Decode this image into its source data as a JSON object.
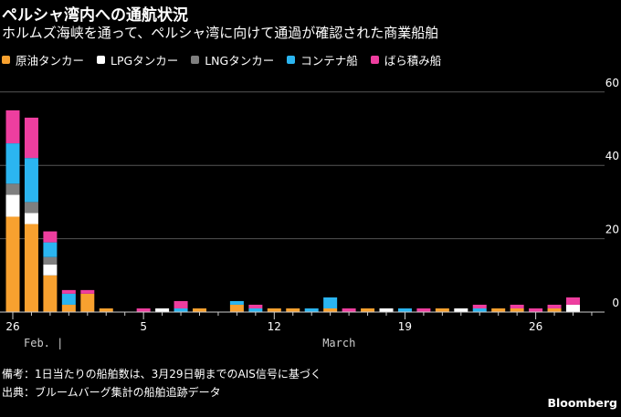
{
  "title": "ペルシャ湾内への通航状況",
  "subtitle": "ホルムズ海峡を通って、ペルシャ湾に向けて通過が確認された商業船舶",
  "notes": [
    "備考：1日当たりの船舶数は、3月29日朝までのAIS信号に基づく",
    "出典：ブルームバーグ集計の船舶追跡データ"
  ],
  "brand": "Bloomberg",
  "chart_data": {
    "type": "bar",
    "stacked": true,
    "ylim": [
      0,
      60
    ],
    "yticks": [
      0,
      20,
      40,
      60
    ],
    "grid": true,
    "y_axis_side": "right",
    "x": [
      "Feb 26",
      "Feb 27",
      "Feb 28",
      "Mar 1",
      "Mar 2",
      "Mar 3",
      "Mar 4",
      "Mar 5",
      "Mar 6",
      "Mar 7",
      "Mar 8",
      "Mar 9",
      "Mar 10",
      "Mar 11",
      "Mar 12",
      "Mar 13",
      "Mar 14",
      "Mar 15",
      "Mar 16",
      "Mar 17",
      "Mar 18",
      "Mar 19",
      "Mar 20",
      "Mar 21",
      "Mar 22",
      "Mar 23",
      "Mar 24",
      "Mar 25",
      "Mar 26",
      "Mar 27",
      "Mar 28",
      "Mar 29"
    ],
    "xtick_labels": [
      {
        "index": 0,
        "label": "26"
      },
      {
        "index": 7,
        "label": "5"
      },
      {
        "index": 14,
        "label": "12"
      },
      {
        "index": 21,
        "label": "19"
      },
      {
        "index": 28,
        "label": "26"
      }
    ],
    "month_labels": [
      {
        "index": 0,
        "label": "Feb.  |"
      },
      {
        "index": 16,
        "label": "March"
      }
    ],
    "series": [
      {
        "name": "原油タンカー",
        "color": "#f8a12f",
        "values": [
          26,
          24,
          10,
          2,
          5,
          1,
          0,
          0,
          0,
          0,
          1,
          0,
          2,
          0,
          1,
          1,
          0,
          1,
          0,
          1,
          0,
          0,
          0,
          1,
          0,
          0,
          1,
          1,
          0,
          1,
          0,
          0
        ]
      },
      {
        "name": "LPGタンカー",
        "color": "#ffffff",
        "values": [
          6,
          3,
          3,
          0,
          0,
          0,
          0,
          0,
          1,
          0,
          0,
          0,
          0,
          0,
          0,
          0,
          0,
          0,
          0,
          0,
          1,
          0,
          0,
          0,
          1,
          0,
          0,
          0,
          0,
          0,
          2,
          0
        ]
      },
      {
        "name": "LNGタンカー",
        "color": "#7f7f7f",
        "values": [
          3,
          3,
          2,
          0,
          0,
          0,
          0,
          0,
          0,
          0,
          0,
          0,
          0,
          0,
          0,
          0,
          0,
          0,
          0,
          0,
          0,
          0,
          0,
          0,
          0,
          0,
          0,
          0,
          0,
          0,
          0,
          0
        ]
      },
      {
        "name": "コンテナ船",
        "color": "#2bb5f0",
        "values": [
          11,
          12,
          4,
          3,
          0,
          0,
          0,
          0,
          0,
          1,
          0,
          0,
          1,
          1,
          0,
          0,
          1,
          3,
          0,
          0,
          0,
          1,
          0,
          0,
          0,
          1,
          0,
          0,
          0,
          0,
          0,
          0
        ]
      },
      {
        "name": "ばら積み船",
        "color": "#ee3e9f",
        "values": [
          9,
          11,
          3,
          1,
          1,
          0,
          0,
          1,
          0,
          2,
          0,
          0,
          0,
          1,
          0,
          0,
          0,
          0,
          1,
          0,
          0,
          0,
          1,
          0,
          0,
          1,
          0,
          1,
          1,
          1,
          2,
          0
        ]
      }
    ]
  }
}
